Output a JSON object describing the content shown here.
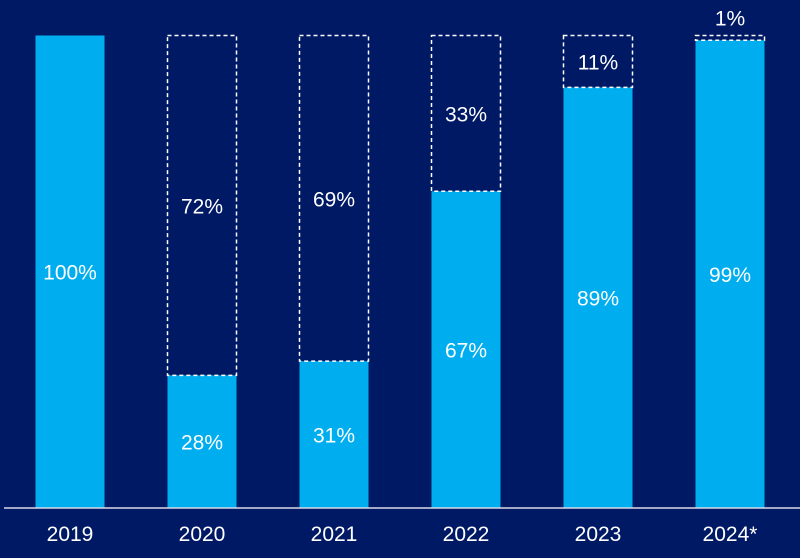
{
  "chart_data": {
    "type": "bar",
    "stacked": true,
    "categories": [
      "2019",
      "2020",
      "2021",
      "2022",
      "2023",
      "2024*"
    ],
    "series": [
      {
        "name": "share",
        "values": [
          100,
          28,
          31,
          67,
          89,
          99
        ],
        "labels": [
          "100%",
          "28%",
          "31%",
          "67%",
          "89%",
          "99%"
        ],
        "style": "filled"
      },
      {
        "name": "remainder",
        "values": [
          0,
          72,
          69,
          33,
          11,
          1
        ],
        "labels": [
          "",
          "72%",
          "69%",
          "33%",
          "11%",
          "1%"
        ],
        "style": "dashed-outline"
      }
    ],
    "ylim": [
      0,
      100
    ],
    "title": "",
    "xlabel": "",
    "ylabel": "",
    "grid": false,
    "legend": "none"
  },
  "colors": {
    "background": "#001965",
    "bar": "#00aeef",
    "outline": "#ffffff",
    "text": "#ffffff"
  }
}
